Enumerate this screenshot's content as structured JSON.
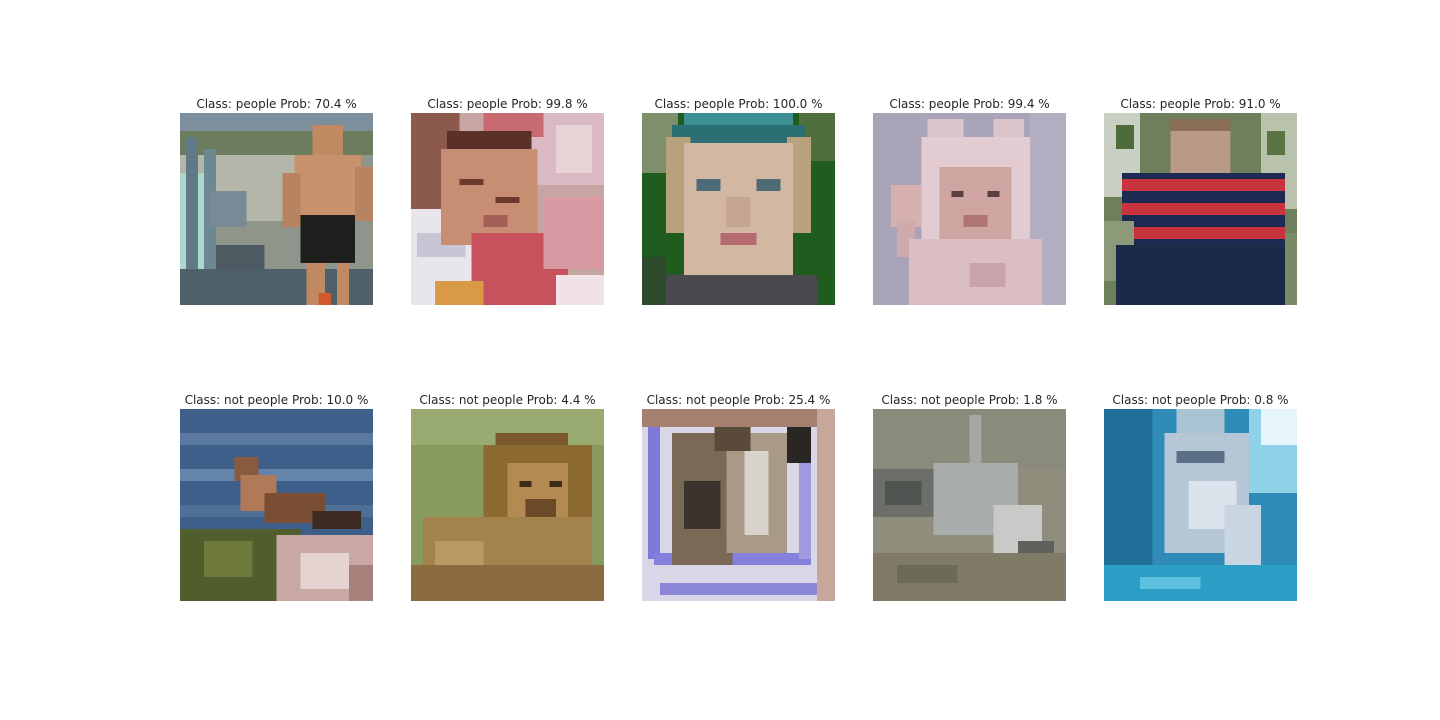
{
  "figure": {
    "rows": [
      [
        {
          "caption": "Class: people Prob: 70.4 %",
          "subject": "shirtless-man-at-beach",
          "class": "people",
          "prob_percent": 70.4
        },
        {
          "caption": "Class: people Prob: 99.8 %",
          "subject": "sleeping-baby",
          "class": "people",
          "prob_percent": 99.8
        },
        {
          "caption": "Class: people Prob: 100.0 %",
          "subject": "child-face-with-cap",
          "class": "people",
          "prob_percent": 100.0
        },
        {
          "caption": "Class: people Prob: 99.4 %",
          "subject": "baby-in-pink-hood",
          "class": "people",
          "prob_percent": 99.4
        },
        {
          "caption": "Class: people Prob: 91.0 %",
          "subject": "boy-in-striped-shirt",
          "class": "people",
          "prob_percent": 91.0
        }
      ],
      [
        {
          "caption": "Class: not people Prob: 10.0 %",
          "subject": "bird-on-rock-by-water",
          "class": "not people",
          "prob_percent": 10.0
        },
        {
          "caption": "Class: not people Prob: 4.4 %",
          "subject": "lion-lying-on-grass",
          "class": "not people",
          "prob_percent": 4.4
        },
        {
          "caption": "Class: not people Prob: 25.4 %",
          "subject": "wolf-sketch",
          "class": "not people",
          "prob_percent": 25.4
        },
        {
          "caption": "Class: not people Prob: 1.8 %",
          "subject": "gray-animal-on-sand",
          "class": "not people",
          "prob_percent": 1.8
        },
        {
          "caption": "Class: not people Prob: 0.8 %",
          "subject": "shark-underwater",
          "class": "not people",
          "prob_percent": 0.8
        }
      ]
    ]
  }
}
